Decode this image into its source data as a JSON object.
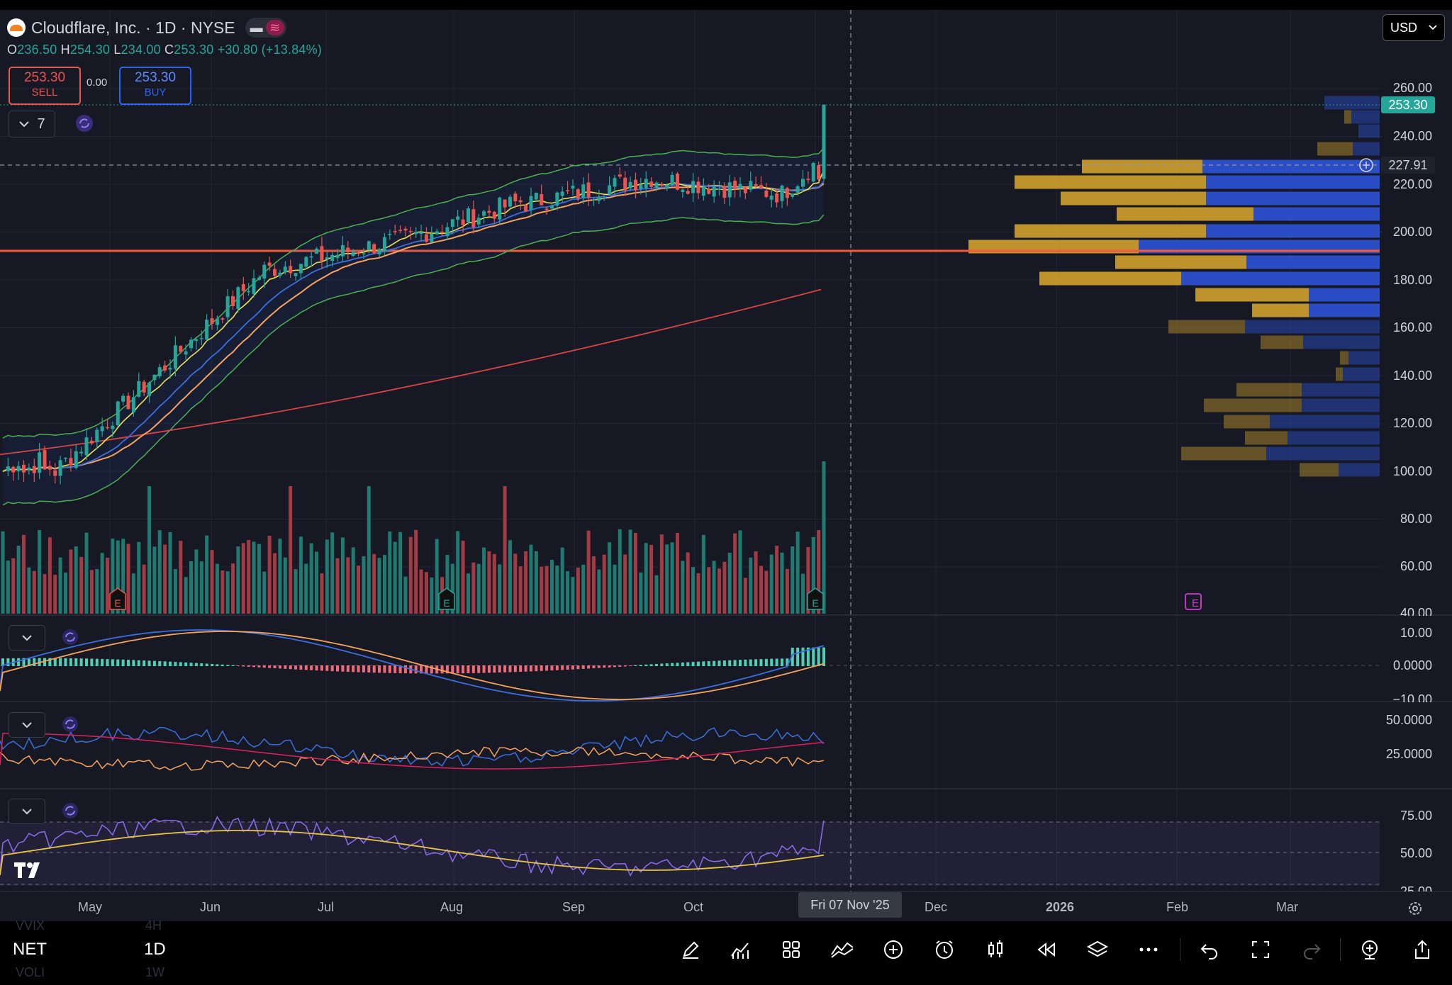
{
  "header": {
    "symbol_title": "Cloudflare, Inc. · 1D · NYSE",
    "ohlc": {
      "o_label": "O",
      "o": "236.50",
      "h_label": "H",
      "h": "254.30",
      "l_label": "L",
      "l": "234.00",
      "c_label": "C",
      "c": "253.30",
      "change": "+30.80 (+13.84%)"
    },
    "sell": {
      "price": "253.30",
      "label": "SELL"
    },
    "buy": {
      "price": "253.30",
      "label": "BUY"
    },
    "spread": "0.00",
    "indicator_count": "7",
    "currency": "USD"
  },
  "price_axis": {
    "labels": [
      "260.00",
      "240.00",
      "220.00",
      "200.00",
      "180.00",
      "160.00",
      "140.00",
      "120.00",
      "100.00",
      "80.00",
      "60.00",
      "40.00"
    ],
    "last_price": "253.30",
    "crosshair_price": "227.91"
  },
  "macd_axis": [
    "10.00",
    "0.0000",
    "−10.00"
  ],
  "dmi_axis": [
    "50.0000",
    "25.0000"
  ],
  "rsi_axis": [
    "75.00",
    "50.00",
    "25.00"
  ],
  "time_axis": {
    "months": [
      "May",
      "Jun",
      "Jul",
      "Aug",
      "Sep",
      "Oct",
      "Dec",
      "2026",
      "Feb",
      "Mar"
    ],
    "crosshair_date": "Fri 07 Nov '25"
  },
  "earnings_marker": "E",
  "bottom_bar": {
    "symbol": "NET",
    "interval": "1D",
    "ghost_symbol_1": "VVIX",
    "ghost_interval_1": "4H",
    "ghost_symbol_2": "VOLI",
    "ghost_interval_2": "1W"
  },
  "colors": {
    "up": "#26a69a",
    "down": "#ef5350",
    "volume_up": "#1f7a72",
    "volume_down": "#a33a44",
    "bb": "#4caf50",
    "ema_yellow": "#f0e04a",
    "ema_blue": "#3b6fe0",
    "sma_orange": "#f7a35c",
    "sma200": "#d84444",
    "support_line": "#f05a3c",
    "vp_up": "#c79a2c",
    "vp_down": "#2b4fcf",
    "rsi": "#8c6cf0",
    "accent": "#2962ff"
  },
  "icons": [
    "cloudflare-logo",
    "chevron-down-icon",
    "sync-icon",
    "pencil-icon",
    "indicators-icon",
    "templates-icon",
    "drawing-tools-icon",
    "add-icon",
    "alert-icon",
    "bar-style-icon",
    "replay-icon",
    "layers-icon",
    "more-icon",
    "undo-icon",
    "fullscreen-icon",
    "redo-icon",
    "add-symbol-icon",
    "share-icon",
    "settings-gear-icon",
    "tradingview-logo"
  ]
}
